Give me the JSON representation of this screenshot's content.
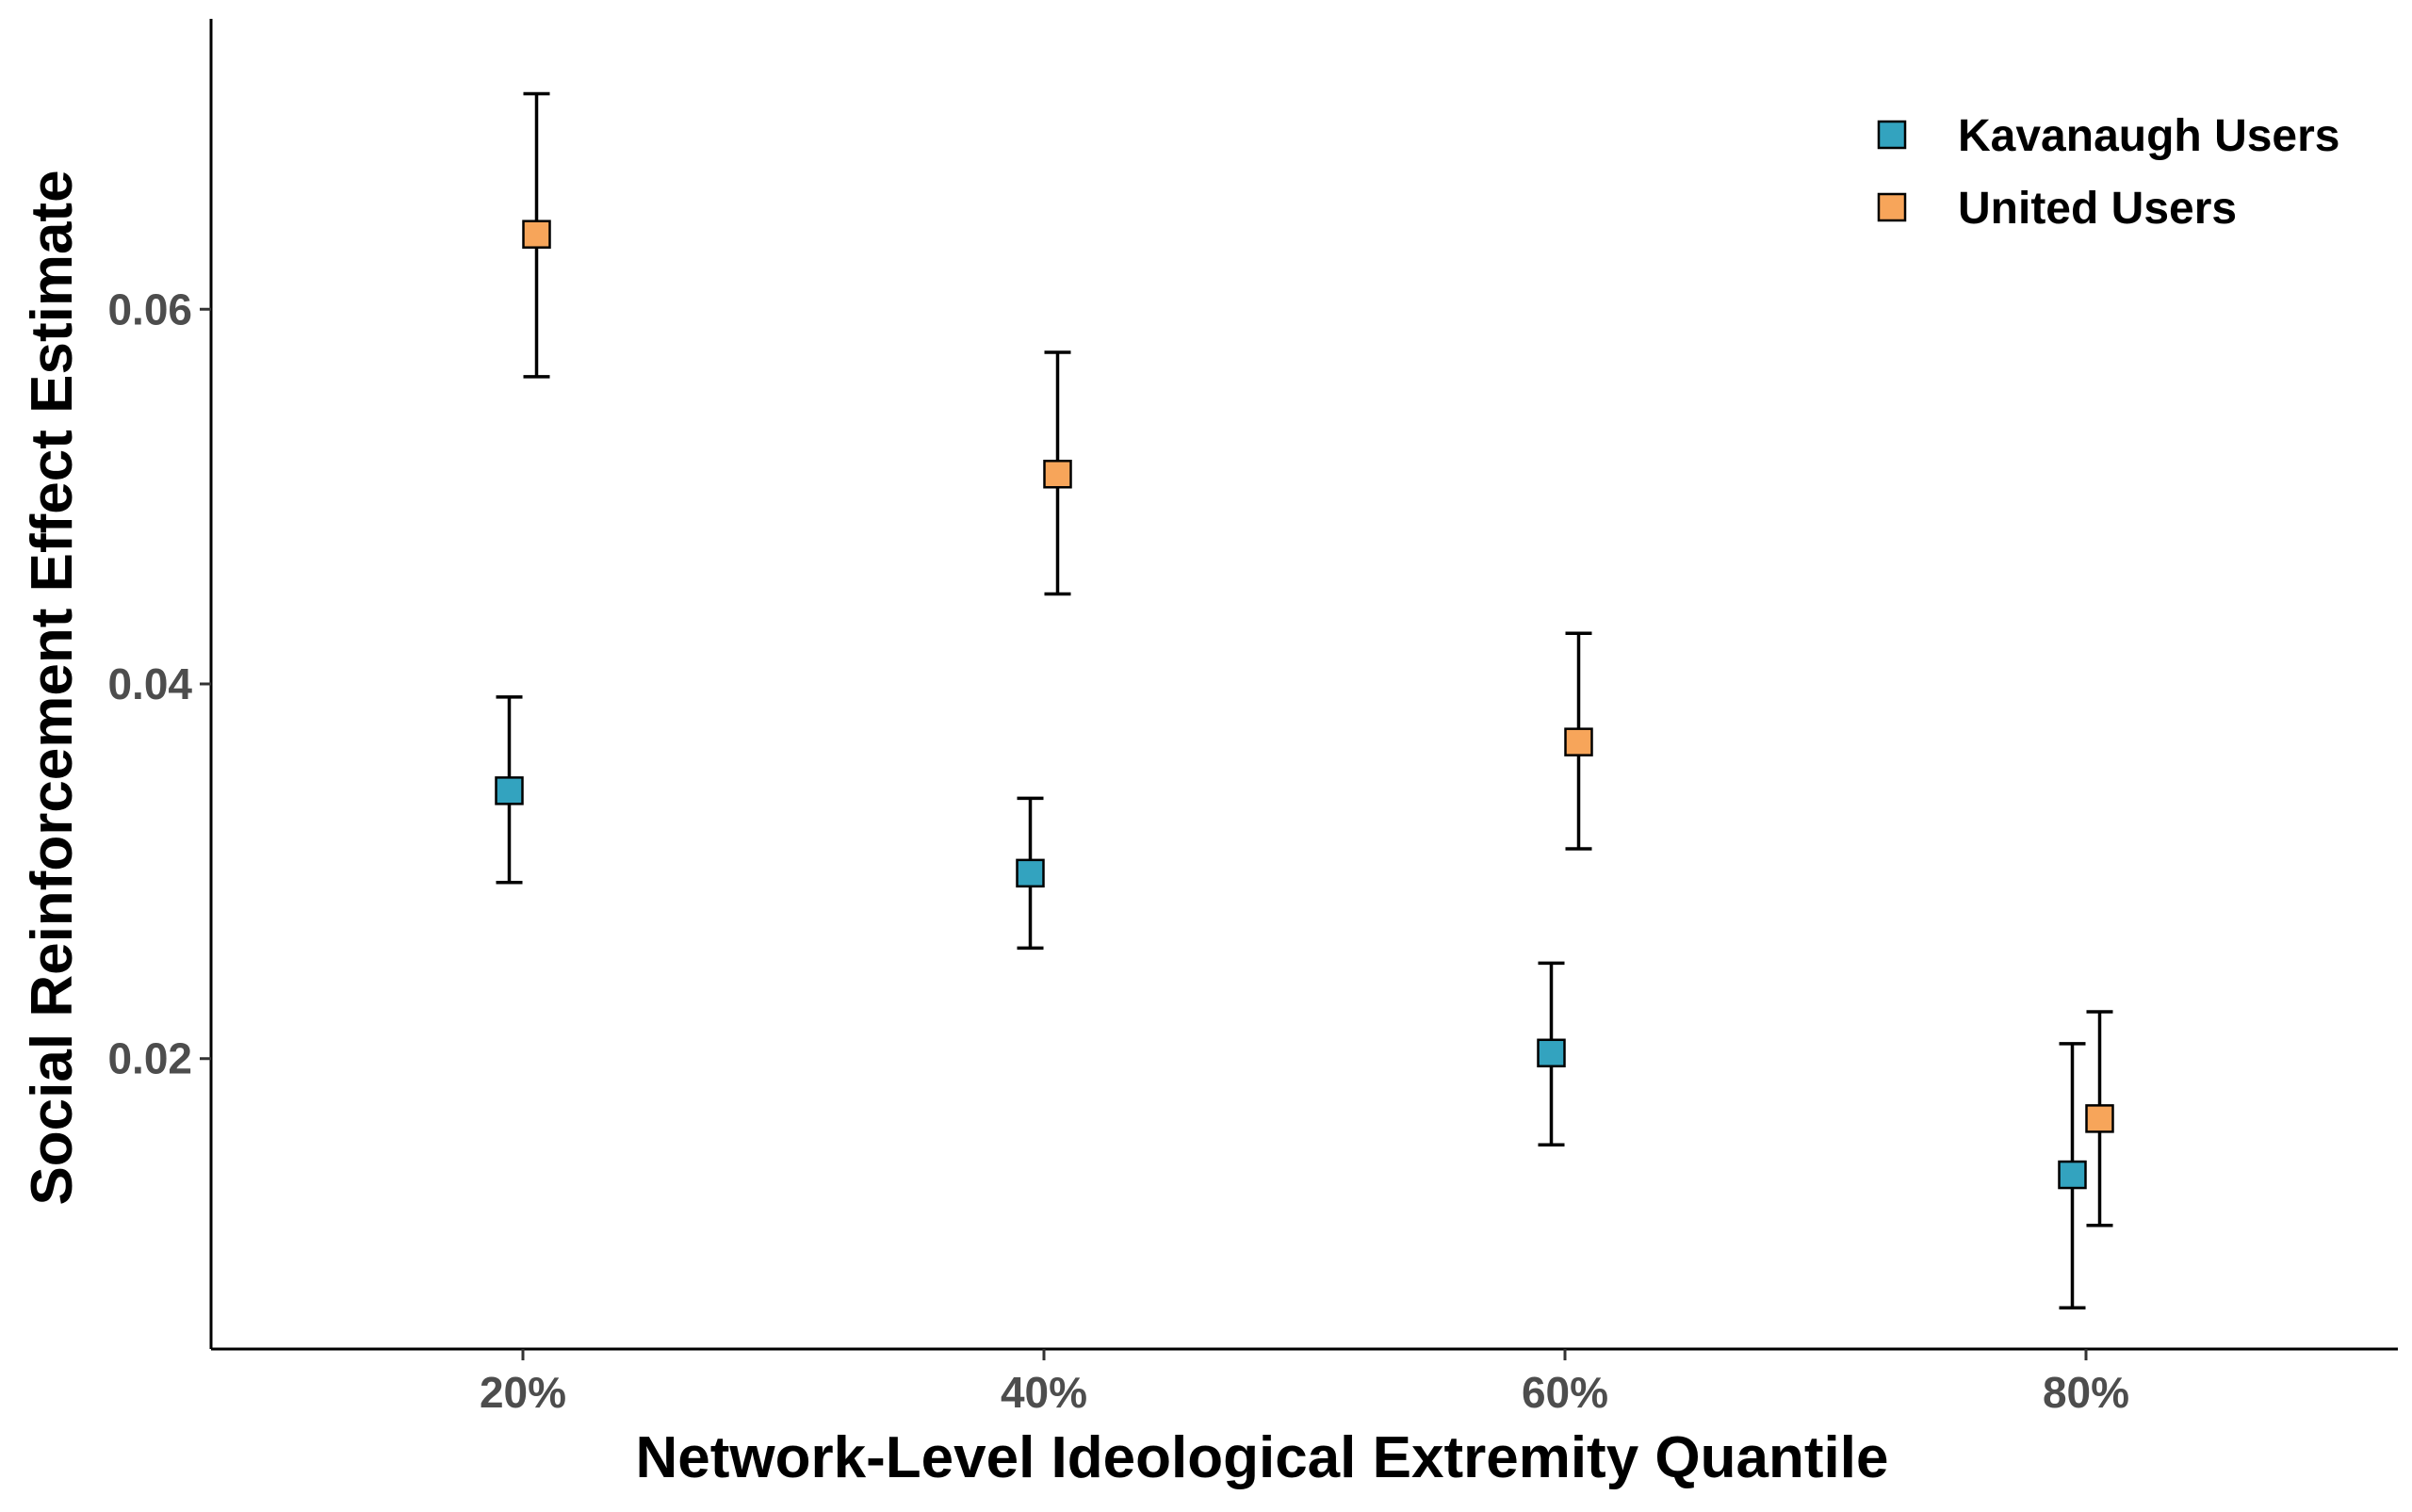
{
  "chart_data": {
    "type": "scatter",
    "title": "",
    "xlabel": "Network-Level Ideological Extremity Quantile",
    "ylabel": "Social Reinforcement Effect Estimate",
    "categories": [
      "20%",
      "40%",
      "60%",
      "80%"
    ],
    "ylim": [
      0.0045,
      0.0755
    ],
    "yticks": [
      {
        "value": 0.02,
        "label": "0.02"
      },
      {
        "value": 0.04,
        "label": "0.04"
      },
      {
        "value": 0.06,
        "label": "0.06"
      }
    ],
    "grid": false,
    "legend_position": "top-right",
    "series": [
      {
        "name": "Kavanaugh Users",
        "color": "#33a3bf",
        "values": [
          0.0343,
          0.0299,
          0.0203,
          0.0138
        ],
        "lower": [
          0.0294,
          0.0259,
          0.0154,
          0.0067
        ],
        "upper": [
          0.0393,
          0.0339,
          0.0251,
          0.0208
        ]
      },
      {
        "name": "United Users",
        "color": "#f7a55a",
        "values": [
          0.064,
          0.0512,
          0.0369,
          0.0168
        ],
        "lower": [
          0.0564,
          0.0448,
          0.0312,
          0.0111
        ],
        "upper": [
          0.0715,
          0.0577,
          0.0427,
          0.0225
        ]
      }
    ]
  }
}
